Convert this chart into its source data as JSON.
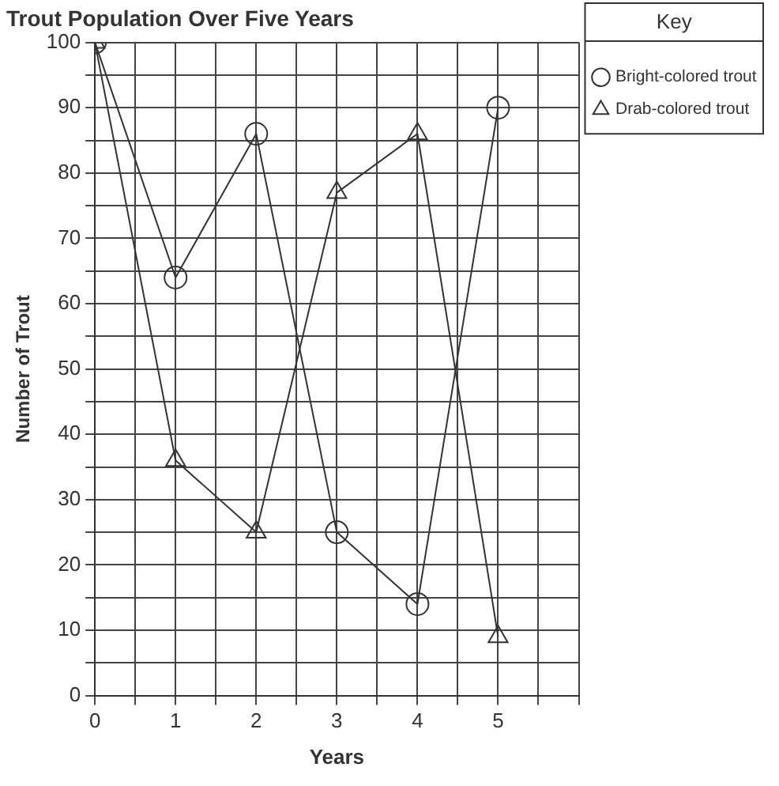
{
  "chart_data": {
    "type": "line",
    "title": "Trout Population Over Five Years",
    "xlabel": "Years",
    "ylabel": "Number of Trout",
    "legend_title": "Key",
    "legend": "top right",
    "grid": true,
    "x": [
      0,
      1,
      2,
      3,
      4,
      5
    ],
    "series": [
      {
        "name": "Bright-colored trout",
        "color": "#333333",
        "marker": "circle",
        "values": [
          100,
          64,
          86,
          25,
          14,
          90
        ]
      },
      {
        "name": "Drab-colored trout",
        "color": "#333333",
        "marker": "triangle",
        "values": [
          100,
          36,
          25,
          77,
          86,
          9
        ]
      }
    ],
    "xlim": [
      0,
      6
    ],
    "xticks": [
      0,
      {
        "value": 0.5,
        "label": null
      },
      1,
      {
        "value": 1.5,
        "label": null
      },
      2,
      {
        "value": 2.5,
        "label": null
      },
      3,
      {
        "value": 3.5,
        "label": null
      },
      4,
      {
        "value": 4.5,
        "label": null
      },
      5,
      {
        "value": 5.5,
        "label": null
      },
      {
        "value": 6,
        "label": null
      }
    ],
    "ylim": [
      0,
      100
    ],
    "yticks": [
      0,
      {
        "value": 5,
        "label": null
      },
      10,
      {
        "value": 15,
        "label": null
      },
      20,
      {
        "value": 25,
        "label": null
      },
      30,
      {
        "value": 35,
        "label": null
      },
      40,
      {
        "value": 45,
        "label": null
      },
      50,
      {
        "value": 55,
        "label": null
      },
      60,
      {
        "value": 65,
        "label": null
      },
      70,
      {
        "value": 75,
        "label": null
      },
      80,
      {
        "value": 85,
        "label": null
      },
      90,
      {
        "value": 95,
        "label": null
      },
      100
    ]
  }
}
